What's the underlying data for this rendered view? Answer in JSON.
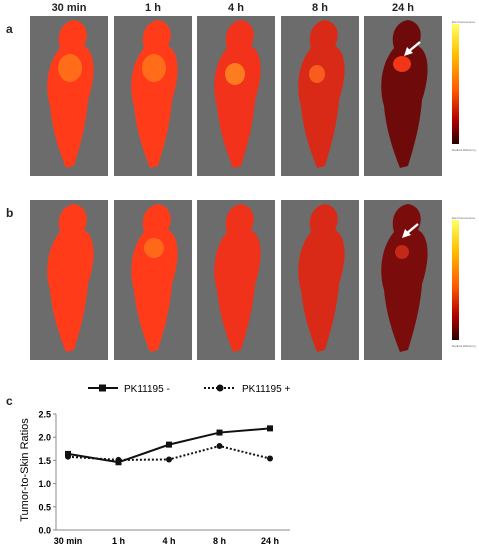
{
  "timepoints": [
    "30 min",
    "1 h",
    "4 h",
    "8 h",
    "24 h"
  ],
  "panels": {
    "a": {
      "letter": "a"
    },
    "b": {
      "letter": "b"
    },
    "c": {
      "letter": "c"
    }
  },
  "scale": {
    "title": "Epi-Fluorescence",
    "unit": "Radiant Efficiency"
  },
  "colors": {
    "accent": "#ff3b1a",
    "background_gray": "#6c6c6c"
  },
  "chart_data": {
    "type": "line",
    "categories": [
      "30 min",
      "1 h",
      "4 h",
      "8 h",
      "24 h"
    ],
    "series": [
      {
        "name": "PK11195 -",
        "marker": "square",
        "line": "solid",
        "values": [
          1.64,
          1.46,
          1.84,
          2.1,
          2.19
        ]
      },
      {
        "name": "PK11195 +",
        "marker": "circle",
        "line": "dotted",
        "values": [
          1.58,
          1.51,
          1.52,
          1.81,
          1.54
        ]
      }
    ],
    "ylabel": "Tumor-to-Skin Ratios",
    "xlabel": "",
    "ylim": [
      0,
      2.5
    ],
    "yticks": [
      "0.0",
      "0.5",
      "1.0",
      "1.5",
      "2.0",
      "2.5"
    ],
    "legend": "top",
    "grid": false
  }
}
